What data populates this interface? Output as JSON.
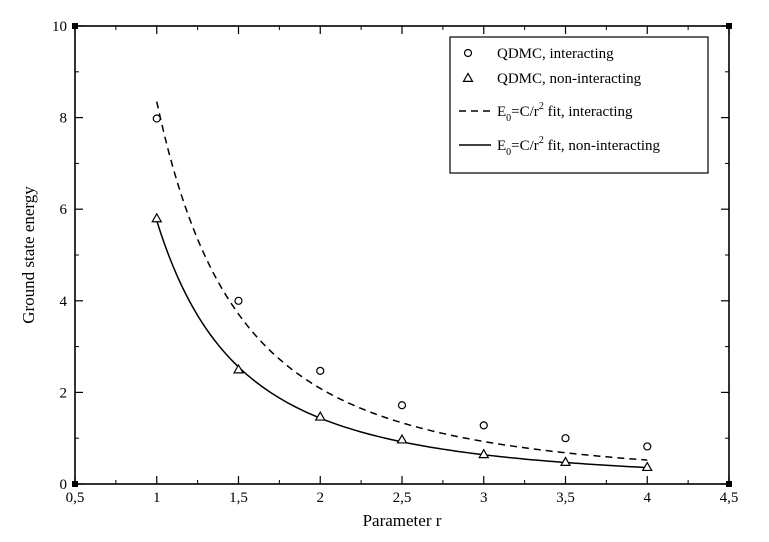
{
  "chart_data": {
    "type": "scatter",
    "title": "",
    "xlabel": "Parameter r",
    "ylabel": "Ground state energy",
    "xlim": [
      0.5,
      4.5
    ],
    "ylim": [
      0,
      10
    ],
    "x_ticks": [
      0.5,
      1,
      1.5,
      2,
      2.5,
      3,
      3.5,
      4,
      4.5
    ],
    "x_tick_labels": [
      "0,5",
      "1",
      "1,5",
      "2",
      "2,5",
      "3",
      "3,5",
      "4",
      "4,5"
    ],
    "y_ticks": [
      0,
      2,
      4,
      6,
      8,
      10
    ],
    "y_tick_labels": [
      "0",
      "2",
      "4",
      "6",
      "8",
      "10"
    ],
    "grid": false,
    "legend_position": "top-right",
    "series": [
      {
        "name": "QDMC, interacting",
        "kind": "markers",
        "marker": "circle",
        "x": [
          1,
          1.5,
          2,
          2.5,
          3,
          3.5,
          4
        ],
        "y": [
          7.98,
          4.0,
          2.47,
          1.72,
          1.28,
          1.0,
          0.82
        ]
      },
      {
        "name": "QDMC, non-interacting",
        "kind": "markers",
        "marker": "triangle",
        "x": [
          1,
          1.5,
          2,
          2.5,
          3,
          3.5,
          4
        ],
        "y": [
          5.8,
          2.5,
          1.47,
          0.97,
          0.65,
          0.48,
          0.37
        ]
      },
      {
        "name": "fit, interacting",
        "kind": "line",
        "style": "dashed",
        "formula": "E0 = C / r^2",
        "C": 8.35,
        "x_range": [
          1,
          4
        ]
      },
      {
        "name": "fit, non-interacting",
        "kind": "line",
        "style": "solid",
        "formula": "E0 = C / r^2",
        "C": 5.75,
        "x_range": [
          1,
          4
        ]
      }
    ],
    "legend": [
      {
        "key": "circle",
        "text": "QDMC, interacting"
      },
      {
        "key": "triangle",
        "text": "QDMC, non-interacting"
      },
      {
        "key": "dashed",
        "pre": "E",
        "sub": "0",
        "mid": "=C/r",
        "sup": "2",
        "post": " fit, interacting"
      },
      {
        "key": "solid",
        "pre": "E",
        "sub": "0",
        "mid": "=C/r",
        "sup": "2",
        "post": " fit, non-interacting"
      }
    ]
  }
}
